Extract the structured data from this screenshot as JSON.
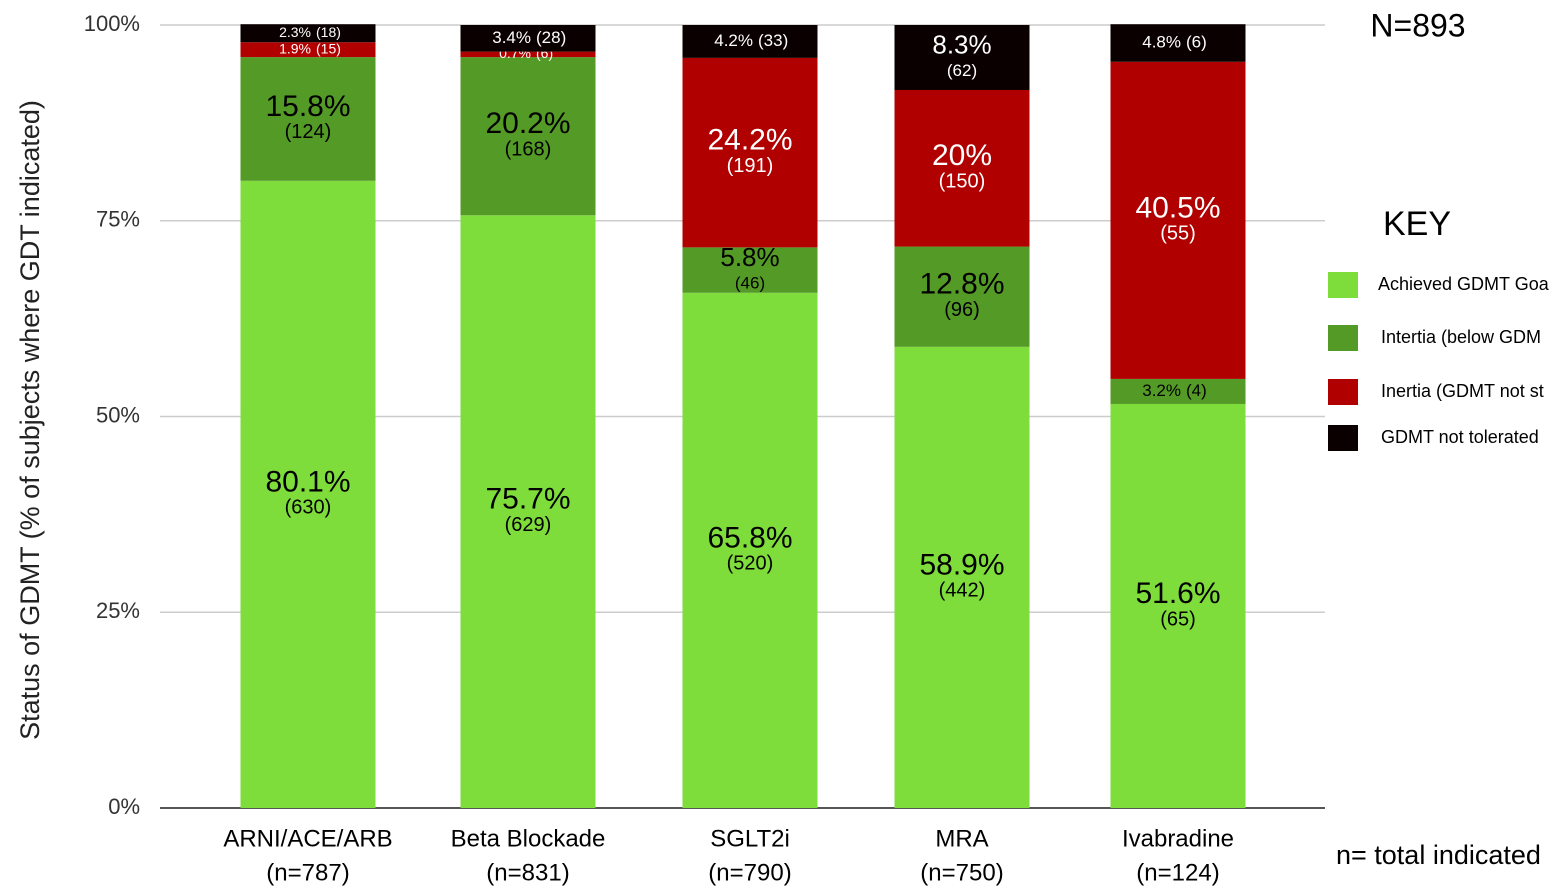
{
  "chart_data": {
    "type": "stacked_bar",
    "y_label": "Status of GDMT (% of subjects where GDT indicated)",
    "categories": [
      "ARNI/ACE/ARB",
      "Beta Blockade",
      "SGLT2i",
      "MRA",
      "Ivabradine"
    ],
    "n_labels": [
      "(n=787)",
      "(n=831)",
      "(n=790)",
      "(n=750)",
      "(n=124)"
    ],
    "series": [
      {
        "name": "Achieved GDMT Goa",
        "color": "#7edc3b",
        "text_color": "#000000",
        "values": [
          80.1,
          75.7,
          65.8,
          58.9,
          51.6
        ],
        "value_labels": [
          "80.1%",
          "75.7%",
          "65.8%",
          "58.9%",
          "51.6%"
        ],
        "count_labels": [
          "(630)",
          "(629)",
          "(520)",
          "(442)",
          "(65)"
        ]
      },
      {
        "name": "Intertia (below GDM",
        "color": "#549a26",
        "text_color": "#000000",
        "values": [
          15.8,
          20.2,
          5.8,
          12.8,
          3.2
        ],
        "value_labels": [
          "15.8%",
          "20.2%",
          "5.8%",
          "12.8%",
          "3.2%"
        ],
        "count_labels": [
          "(124)",
          "(168)",
          "(46)",
          "(96)",
          "(4)"
        ]
      },
      {
        "name": "Inertia (GDMT not st",
        "color": "#b00000",
        "text_color": "#ffffff",
        "values": [
          1.9,
          0.7,
          24.2,
          20,
          40.5
        ],
        "value_labels": [
          "1.9%",
          "0.7%",
          "24.2%",
          "20%",
          "40.5%"
        ],
        "count_labels": [
          "(15)",
          "(6)",
          "(191)",
          "(150)",
          "(55)"
        ]
      },
      {
        "name": "GDMT not tolerated",
        "color": "#0a0000",
        "text_color": "#ffffff",
        "values": [
          2.3,
          3.4,
          4.2,
          8.3,
          4.8
        ],
        "value_labels": [
          "2.3%",
          "3.4%",
          "4.2%",
          "8.3%",
          "4.8%"
        ],
        "count_labels": [
          "(18)",
          "(28)",
          "(33)",
          "(62)",
          "(6)"
        ]
      }
    ],
    "ylim": [
      0,
      100
    ],
    "yticks": [
      {
        "value": 0,
        "label": "0%"
      },
      {
        "value": 25,
        "label": "25%"
      },
      {
        "value": 50,
        "label": "50%"
      },
      {
        "value": 75,
        "label": "75%"
      },
      {
        "value": 100,
        "label": "100%"
      }
    ],
    "grid": true,
    "total_label": "N=893",
    "legend_title": "KEY",
    "footnote": "n= total indicated"
  }
}
